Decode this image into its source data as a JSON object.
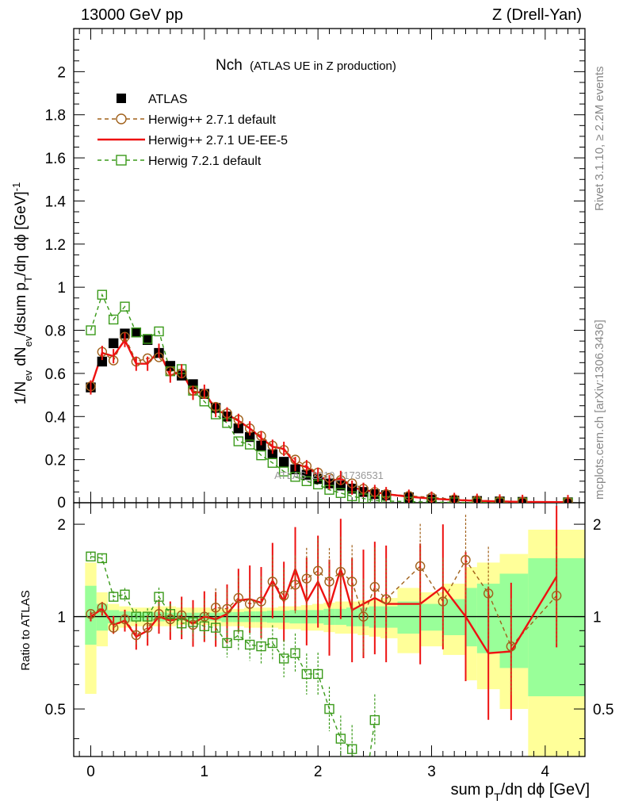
{
  "header": {
    "left": "13000 GeV pp",
    "right": "Z (Drell-Yan)"
  },
  "side_labels": {
    "rivet": "Rivet 3.1.10, ≥ 2.2M events",
    "mcplots": "mcplots.cern.ch [arXiv:1306.3436]"
  },
  "watermark": "ATLAS_2019_I1736531",
  "colors": {
    "data": "#000000",
    "herwig_default": "#a0601a",
    "herwig_ueee5": "#ee1111",
    "herwig721": "#3a9a1a",
    "band_yellow": "#ffff99",
    "band_green": "#99ff99"
  },
  "chart_data": [
    {
      "type": "scatter",
      "title": "Nch",
      "subtitle": "(ATLAS UE in Z production)",
      "ylabel_parts": [
        "1/N",
        "ev",
        " dN",
        "ev",
        "/dsum p",
        "T",
        "/dη dϕ  [GeV]",
        "-1"
      ],
      "xlim": [
        -0.15,
        4.35
      ],
      "ylim": [
        0,
        2.2
      ],
      "yticks": [
        0.2,
        0.4,
        0.6,
        0.8,
        1,
        1.2,
        1.4,
        1.6,
        1.8,
        2
      ],
      "ytick_labels": [
        "0.2",
        "0.4",
        "0.6",
        "0.8",
        "1",
        "1.2",
        "1.4",
        "1.6",
        "1.8",
        "2"
      ],
      "yticks_bottom_label": "0",
      "legend_position": "top-left",
      "legend": [
        "ATLAS",
        "Herwig++ 2.7.1 default",
        "Herwig++ 2.7.1 UE-EE-5",
        "Herwig 7.2.1 default"
      ],
      "x": [
        0.0,
        0.1,
        0.2,
        0.3,
        0.4,
        0.5,
        0.6,
        0.7,
        0.8,
        0.9,
        1.0,
        1.1,
        1.2,
        1.3,
        1.4,
        1.5,
        1.6,
        1.7,
        1.8,
        1.9,
        2.0,
        2.1,
        2.2,
        2.3,
        2.4,
        2.5,
        2.6,
        2.8,
        3.0,
        3.2,
        3.4,
        3.6,
        3.8,
        4.2
      ],
      "series": [
        {
          "name": "ATLAS",
          "values": [
            0.535,
            0.655,
            0.74,
            0.785,
            0.79,
            0.755,
            0.695,
            0.635,
            0.59,
            0.55,
            0.505,
            0.44,
            0.4,
            0.345,
            0.305,
            0.265,
            0.225,
            0.19,
            0.155,
            0.13,
            0.11,
            0.09,
            0.08,
            0.065,
            0.05,
            0.04,
            0.035,
            0.025,
            0.015,
            0.01,
            0.008,
            0.006,
            0.004,
            0.002
          ]
        },
        {
          "name": "Herwig++ 2.7.1 default",
          "values": [
            0.54,
            0.7,
            0.66,
            0.77,
            0.655,
            0.67,
            0.675,
            0.61,
            0.6,
            0.52,
            0.505,
            0.445,
            0.415,
            0.385,
            0.345,
            0.31,
            0.265,
            0.245,
            0.2,
            0.17,
            0.14,
            0.115,
            0.105,
            0.09,
            0.065,
            0.05,
            0.04,
            0.032,
            0.025,
            0.016,
            0.011,
            0.008,
            0.005,
            0.003
          ]
        },
        {
          "name": "Herwig++ 2.7.1 UE-EE-5",
          "values": [
            0.535,
            0.695,
            0.68,
            0.755,
            0.645,
            0.645,
            0.705,
            0.59,
            0.61,
            0.51,
            0.515,
            0.43,
            0.41,
            0.38,
            0.345,
            0.3,
            0.26,
            0.25,
            0.18,
            0.165,
            0.13,
            0.095,
            0.115,
            0.07,
            0.06,
            0.05,
            0.04,
            0.028,
            0.019,
            0.013,
            0.009,
            0.006,
            0.004,
            0.003
          ]
        },
        {
          "name": "Herwig 7.2.1 default",
          "values": [
            0.8,
            0.965,
            0.85,
            0.91,
            0.79,
            0.76,
            0.795,
            0.61,
            0.62,
            0.52,
            0.47,
            0.41,
            0.37,
            0.285,
            0.27,
            0.22,
            0.185,
            0.145,
            0.12,
            0.1,
            0.085,
            0.06,
            0.045,
            0.03,
            0.02,
            0.01,
            0.008,
            0.005,
            0.003,
            0.002,
            0.0015,
            0.001,
            0.0007,
            0.0004
          ]
        }
      ]
    },
    {
      "type": "scatter",
      "ylabel": "Ratio to ATLAS",
      "xlabel_parts": [
        "sum p",
        "T",
        "/dη dϕ [GeV]"
      ],
      "xlim": [
        -0.15,
        4.35
      ],
      "ylim": [
        0.35,
        2.35
      ],
      "xticks": [
        0,
        1,
        2,
        3,
        4
      ],
      "xtick_labels": [
        "0",
        "1",
        "2",
        "3",
        "4"
      ],
      "yticks": [
        0.5,
        1,
        2
      ],
      "ytick_labels": [
        "0.5",
        "1",
        "2"
      ],
      "ratio_x": [
        0.0,
        0.1,
        0.2,
        0.3,
        0.4,
        0.5,
        0.6,
        0.7,
        0.8,
        0.9,
        1.0,
        1.1,
        1.2,
        1.3,
        1.4,
        1.5,
        1.6,
        1.7,
        1.8,
        1.9,
        2.0,
        2.1,
        2.2,
        2.3,
        2.4,
        2.5,
        2.6,
        2.9,
        3.1,
        3.3,
        3.5,
        3.7,
        4.1
      ],
      "series": [
        {
          "name": "Herwig++ 2.7.1 default",
          "values": [
            1.02,
            1.07,
            0.92,
            0.98,
            0.87,
            0.92,
            1.02,
            0.98,
            1.01,
            0.94,
            1.0,
            1.07,
            1.06,
            1.15,
            1.1,
            1.12,
            1.3,
            1.17,
            1.27,
            1.33,
            1.41,
            1.3,
            1.4,
            1.3,
            1.0,
            1.25,
            1.14,
            1.46,
            1.12,
            1.53,
            1.19,
            0.8,
            1.17
          ]
        },
        {
          "name": "Herwig++ 2.7.1 UE-EE-5",
          "values": [
            1.0,
            1.06,
            0.94,
            0.97,
            0.86,
            0.9,
            1.0,
            0.97,
            0.99,
            0.95,
            1.0,
            0.98,
            1.02,
            1.13,
            1.14,
            1.11,
            1.31,
            1.12,
            1.43,
            1.12,
            1.3,
            1.07,
            1.43,
            1.05,
            1.1,
            1.15,
            1.1,
            1.1,
            1.25,
            1.0,
            0.76,
            0.77,
            1.35
          ]
        },
        {
          "name": "Herwig 7.2.1 default",
          "values": [
            1.57,
            1.55,
            1.16,
            1.18,
            1.0,
            1.0,
            1.16,
            1.02,
            0.95,
            0.96,
            0.93,
            0.92,
            0.82,
            0.87,
            0.81,
            0.8,
            0.82,
            0.73,
            0.76,
            0.65,
            0.65,
            0.5,
            0.4,
            0.37,
            0.25,
            0.46
          ]
        }
      ],
      "band_edges": [
        -0.05,
        0.05,
        0.15,
        0.25,
        0.35,
        0.45,
        0.55,
        0.65,
        0.75,
        0.85,
        0.95,
        1.05,
        1.15,
        1.25,
        1.35,
        1.45,
        1.55,
        1.65,
        1.75,
        1.85,
        1.95,
        2.05,
        2.15,
        2.25,
        2.35,
        2.45,
        2.55,
        2.7,
        2.9,
        3.1,
        3.3,
        3.4,
        3.6,
        3.85,
        4.35
      ],
      "band_yellow": [
        [
          0.56,
          1.5
        ],
        [
          0.8,
          1.2
        ],
        [
          0.9,
          1.1
        ],
        [
          0.92,
          1.08
        ],
        [
          0.93,
          1.07
        ],
        [
          0.93,
          1.07
        ],
        [
          0.93,
          1.08
        ],
        [
          0.93,
          1.08
        ],
        [
          0.94,
          1.07
        ],
        [
          0.94,
          1.07
        ],
        [
          0.94,
          1.07
        ],
        [
          0.93,
          1.06
        ],
        [
          0.93,
          1.06
        ],
        [
          0.93,
          1.06
        ],
        [
          0.92,
          1.07
        ],
        [
          0.92,
          1.07
        ],
        [
          0.92,
          1.07
        ],
        [
          0.91,
          1.08
        ],
        [
          0.91,
          1.08
        ],
        [
          0.9,
          1.09
        ],
        [
          0.9,
          1.1
        ],
        [
          0.89,
          1.11
        ],
        [
          0.88,
          1.12
        ],
        [
          0.88,
          1.12
        ],
        [
          0.87,
          1.13
        ],
        [
          0.86,
          1.14
        ],
        [
          0.85,
          1.15
        ],
        [
          0.76,
          1.24
        ],
        [
          0.8,
          1.2
        ],
        [
          0.75,
          1.28
        ],
        [
          0.62,
          1.45
        ],
        [
          0.58,
          1.5
        ],
        [
          0.5,
          1.6
        ],
        [
          0.35,
          1.92
        ]
      ],
      "band_green": [
        [
          0.81,
          1.26
        ],
        [
          0.9,
          1.1
        ],
        [
          0.95,
          1.05
        ],
        [
          0.96,
          1.04
        ],
        [
          0.965,
          1.035
        ],
        [
          0.965,
          1.035
        ],
        [
          0.965,
          1.035
        ],
        [
          0.97,
          1.03
        ],
        [
          0.97,
          1.03
        ],
        [
          0.97,
          1.03
        ],
        [
          0.97,
          1.03
        ],
        [
          0.97,
          1.03
        ],
        [
          0.96,
          1.035
        ],
        [
          0.96,
          1.035
        ],
        [
          0.96,
          1.04
        ],
        [
          0.96,
          1.04
        ],
        [
          0.955,
          1.045
        ],
        [
          0.955,
          1.045
        ],
        [
          0.95,
          1.05
        ],
        [
          0.95,
          1.05
        ],
        [
          0.95,
          1.05
        ],
        [
          0.94,
          1.06
        ],
        [
          0.94,
          1.06
        ],
        [
          0.93,
          1.07
        ],
        [
          0.93,
          1.07
        ],
        [
          0.92,
          1.08
        ],
        [
          0.92,
          1.08
        ],
        [
          0.88,
          1.12
        ],
        [
          0.9,
          1.1
        ],
        [
          0.87,
          1.14
        ],
        [
          0.8,
          1.24
        ],
        [
          0.76,
          1.28
        ],
        [
          0.68,
          1.38
        ],
        [
          0.55,
          1.55
        ]
      ]
    }
  ]
}
